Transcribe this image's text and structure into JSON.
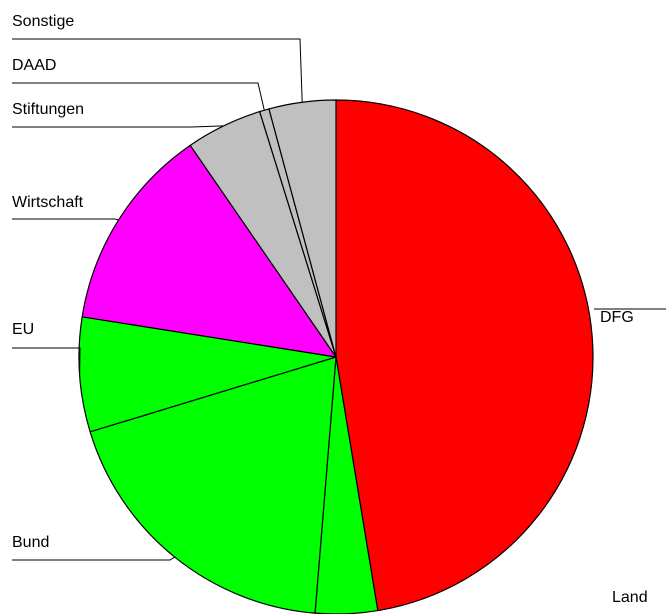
{
  "chart_data": {
    "type": "pie",
    "categories": [
      "DFG",
      "Land",
      "Bund",
      "EU",
      "Wirtschaft",
      "Stiftungen",
      "DAAD",
      "Sonstige"
    ],
    "values": [
      47.4,
      3.9,
      19,
      7.2,
      12.9,
      4.8,
      0.6,
      4.2
    ],
    "colors": [
      "#ff0000",
      "#00ff00",
      "#00ff00",
      "#00ff00",
      "#ff00ff",
      "#c0c0c0",
      "#c0c0c0",
      "#c0c0c0"
    ]
  }
}
